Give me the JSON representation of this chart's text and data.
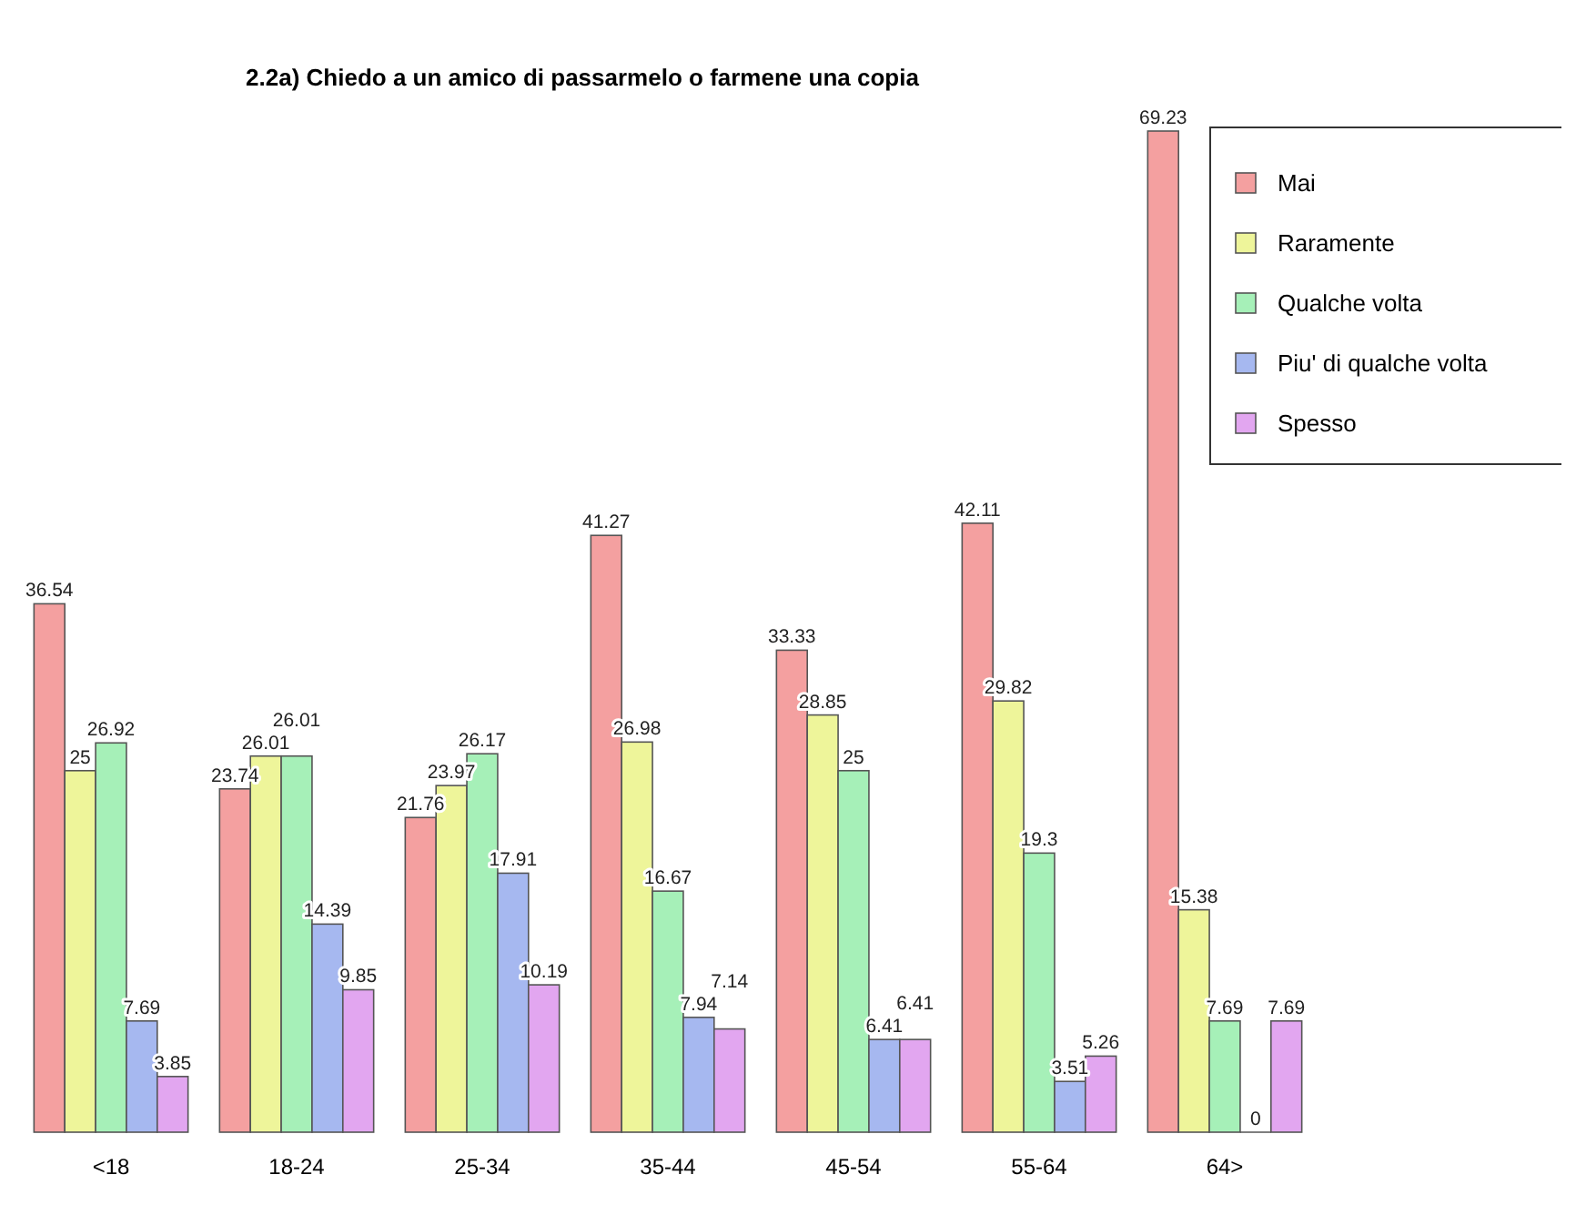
{
  "chart_data": {
    "type": "bar",
    "title": "2.2a) Chiedo a un amico di passarmelo o farmene una copia",
    "categories": [
      "<18",
      "18-24",
      "25-34",
      "35-44",
      "45-54",
      "55-64",
      "64>"
    ],
    "series": [
      {
        "name": "Mai",
        "color": "#f4a0a0",
        "values": [
          36.54,
          23.74,
          21.76,
          41.27,
          33.33,
          42.11,
          69.23
        ]
      },
      {
        "name": "Raramente",
        "color": "#eef59a",
        "values": [
          25,
          26.01,
          23.97,
          26.98,
          28.85,
          29.82,
          15.38
        ]
      },
      {
        "name": "Qualche volta",
        "color": "#a6f0b8",
        "values": [
          26.92,
          26.01,
          26.17,
          16.67,
          25,
          19.3,
          7.69
        ]
      },
      {
        "name": "Piu' di qualche volta",
        "color": "#a6b8f0",
        "values": [
          7.69,
          14.39,
          17.91,
          7.94,
          6.41,
          3.51,
          0
        ]
      },
      {
        "name": "Spesso",
        "color": "#e2a6f0",
        "values": [
          3.85,
          9.85,
          10.19,
          7.14,
          6.41,
          5.26,
          7.69
        ]
      }
    ],
    "data_labels": true,
    "legend": "top right",
    "grid": false
  }
}
